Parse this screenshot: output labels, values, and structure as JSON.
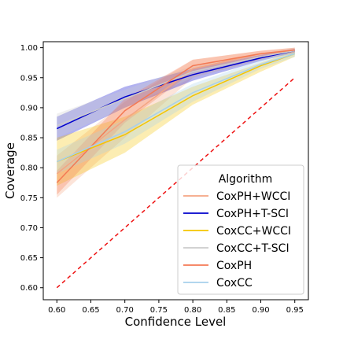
{
  "chart_data": {
    "type": "line",
    "title": "",
    "xlabel": "Confidence Level",
    "ylabel": "Coverage",
    "xlim": [
      0.58,
      0.97
    ],
    "ylim": [
      0.58,
      1.01
    ],
    "xticks": [
      "0.60",
      "0.65",
      "0.70",
      "0.75",
      "0.80",
      "0.85",
      "0.90",
      "0.95"
    ],
    "yticks": [
      "0.60",
      "0.65",
      "0.70",
      "0.75",
      "0.80",
      "0.85",
      "0.90",
      "0.95",
      "1.00"
    ],
    "grid": false,
    "legend": {
      "title": "Algorithm",
      "placement": "bottom-right"
    },
    "x": [
      0.6,
      0.7,
      0.8,
      0.9,
      0.95
    ],
    "series": [
      {
        "name": "CoxPH+WCCI",
        "color": "#f4a582",
        "values": [
          0.79,
          0.88,
          0.965,
          0.99,
          0.995
        ],
        "lower": [
          0.75,
          0.85,
          0.95,
          0.98,
          0.99
        ],
        "upper": [
          0.82,
          0.91,
          0.98,
          0.995,
          1.0
        ]
      },
      {
        "name": "CoxPH+T-SCI",
        "color": "#0000cc",
        "values": [
          0.865,
          0.918,
          0.955,
          0.983,
          0.995
        ],
        "lower": [
          0.845,
          0.9,
          0.945,
          0.978,
          0.992
        ],
        "upper": [
          0.885,
          0.935,
          0.965,
          0.988,
          0.998
        ]
      },
      {
        "name": "CoxCC+WCCI",
        "color": "#f5c400",
        "values": [
          0.81,
          0.855,
          0.92,
          0.97,
          0.99
        ],
        "lower": [
          0.77,
          0.825,
          0.905,
          0.96,
          0.985
        ],
        "upper": [
          0.85,
          0.885,
          0.935,
          0.975,
          0.995
        ]
      },
      {
        "name": "CoxCC+T-SCI",
        "color": "#cccccc",
        "values": [
          0.87,
          0.915,
          0.96,
          0.985,
          0.995
        ],
        "lower": [
          0.85,
          0.9,
          0.95,
          0.98,
          0.99
        ],
        "upper": [
          0.89,
          0.93,
          0.97,
          0.99,
          1.0
        ]
      },
      {
        "name": "CoxPH",
        "color": "#f47a54",
        "values": [
          0.775,
          0.895,
          0.97,
          0.99,
          0.996
        ],
        "lower": [
          0.755,
          0.875,
          0.96,
          0.985,
          0.992
        ],
        "upper": [
          0.795,
          0.915,
          0.98,
          0.995,
          1.0
        ]
      },
      {
        "name": "CoxCC",
        "color": "#a6d0ec",
        "values": [
          0.81,
          0.86,
          0.925,
          0.972,
          0.99
        ],
        "lower": [
          0.79,
          0.84,
          0.91,
          0.965,
          0.985
        ],
        "upper": [
          0.83,
          0.88,
          0.94,
          0.98,
          0.995
        ]
      }
    ],
    "reference_line": {
      "color": "#ee1111",
      "style": "dashed",
      "x": [
        0.6,
        0.95
      ],
      "y": [
        0.6,
        0.95
      ]
    }
  }
}
